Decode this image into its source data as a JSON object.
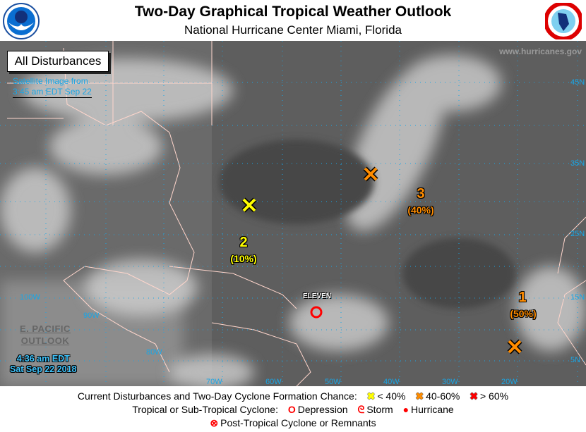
{
  "header": {
    "title": "Two-Day Graphical Tropical Weather Outlook",
    "subtitle": "National Hurricane Center  Miami, Florida",
    "left_logo": "NOAA",
    "right_logo": "National Weather Service"
  },
  "map": {
    "view_label": "All Disturbances",
    "satellite_line1": "Satellite Image from",
    "satellite_line2": "3:45 am EDT Sep 22",
    "website": "www.hurricanes.gov",
    "epac_line1": "E. PACIFIC",
    "epac_line2": "OUTLOOK",
    "time_line1": "4:36 am EDT",
    "time_line2": "Sat Sep 22 2018",
    "lat_labels": [
      "45N",
      "35N",
      "25N",
      "15N",
      "5N"
    ],
    "lon_labels": [
      "100W",
      "90W",
      "80W",
      "70W",
      "60W",
      "50W",
      "40W",
      "30W",
      "20W"
    ],
    "disturbances": [
      {
        "number": "1",
        "chance": "(50%)",
        "category": "40-60%",
        "color": "#ff8c00"
      },
      {
        "number": "2",
        "chance": "(10%)",
        "category": "< 40%",
        "color": "#ffff00"
      },
      {
        "number": "3",
        "chance": "(40%)",
        "category": "40-60%",
        "color": "#ff8c00"
      }
    ],
    "cyclone": {
      "name": "ELEVEN",
      "type": "Depression",
      "color": "#ff0000"
    }
  },
  "legend": {
    "row1_label": "Current Disturbances and Two-Day Cyclone Formation Chance:",
    "low": "< 40%",
    "medium": "40-60%",
    "high": "> 60%",
    "row2_label": "Tropical or Sub-Tropical Cyclone:",
    "depression": "Depression",
    "storm": "Storm",
    "hurricane": "Hurricane",
    "post_tropical": "Post-Tropical Cyclone or Remnants",
    "colors": {
      "low": "#ffff00",
      "medium": "#ff8c00",
      "high": "#ff0000"
    }
  }
}
